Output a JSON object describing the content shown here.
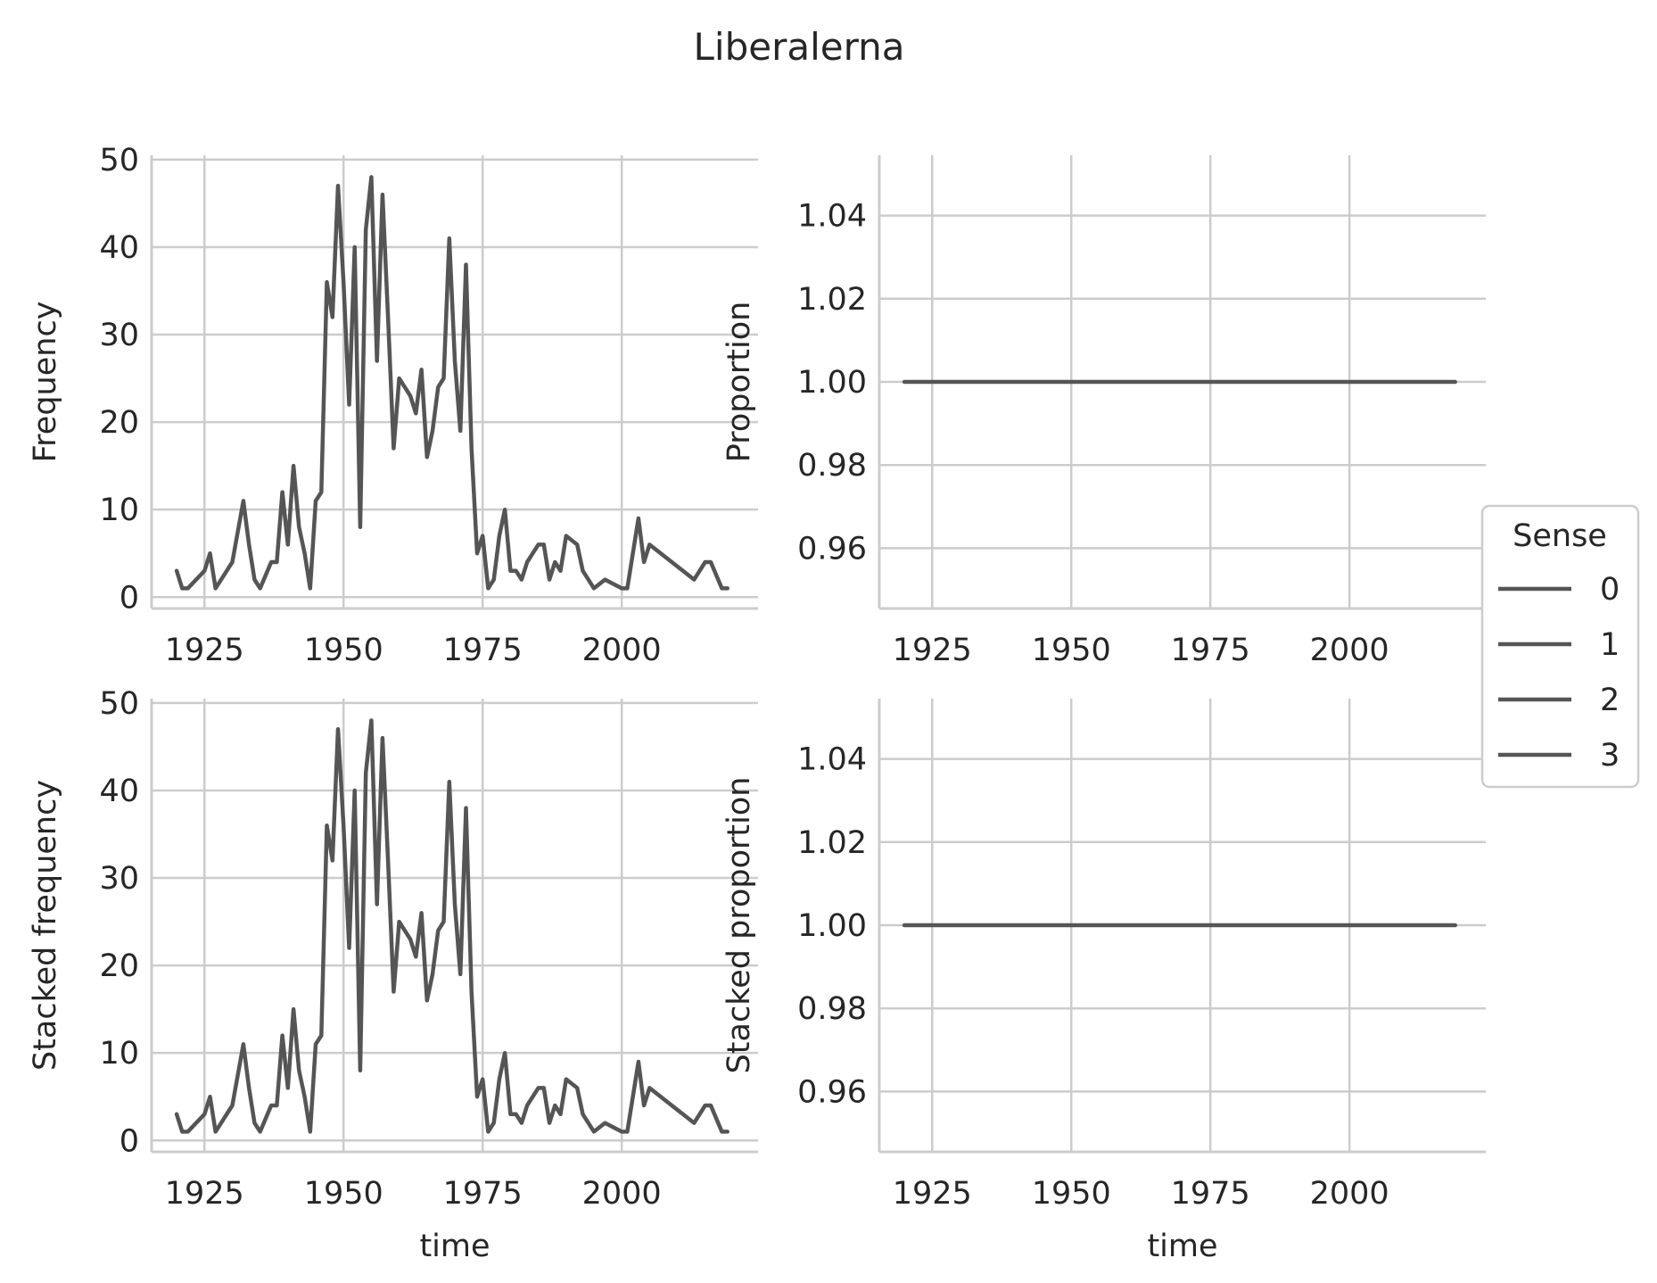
{
  "figure": {
    "title": "Liberalerna",
    "legend": {
      "title": "Sense",
      "entries": [
        "0",
        "1",
        "2",
        "3"
      ],
      "color": "#555555",
      "placement": "center-right outside"
    }
  },
  "chart_data": [
    {
      "id": "frequency",
      "type": "line",
      "xlabel": "",
      "ylabel": "Frequency",
      "xlim": [
        1915.5,
        2024.5
      ],
      "ylim": [
        -1.3,
        50.5
      ],
      "xticks": [
        1925,
        1950,
        1975,
        2000
      ],
      "xtick_labels": [
        "1925",
        "1950",
        "1975",
        "2000"
      ],
      "yticks": [
        0,
        10,
        20,
        30,
        40,
        50
      ],
      "ytick_labels": [
        "0",
        "10",
        "20",
        "30",
        "40",
        "50"
      ],
      "grid": true,
      "color": "#555555",
      "series": [
        {
          "x": [
            1920,
            1921,
            1922,
            1925,
            1926,
            1927,
            1930,
            1932,
            1933,
            1934,
            1935,
            1937,
            1938,
            1939,
            1940,
            1941,
            1942,
            1943,
            1944,
            1945,
            1946,
            1947,
            1948,
            1949,
            1950,
            1951,
            1952,
            1953,
            1954,
            1955,
            1956,
            1957,
            1958,
            1959,
            1960,
            1962,
            1963,
            1964,
            1965,
            1966,
            1967,
            1968,
            1969,
            1970,
            1971,
            1972,
            1973,
            1974,
            1975,
            1976,
            1977,
            1978,
            1979,
            1980,
            1981,
            1982,
            1983,
            1985,
            1986,
            1987,
            1988,
            1989,
            1990,
            1992,
            1993,
            1995,
            1997,
            2000,
            2001,
            2003,
            2004,
            2005,
            2013,
            2014,
            2015,
            2016,
            2018,
            2019
          ],
          "y": [
            3,
            1,
            1,
            3,
            5,
            1,
            4,
            11,
            6,
            2,
            1,
            4,
            4,
            12,
            6,
            15,
            8,
            5,
            1,
            11,
            12,
            36,
            32,
            47,
            36,
            22,
            40,
            8,
            42,
            48,
            27,
            46,
            32,
            17,
            25,
            23,
            21,
            26,
            16,
            19,
            24,
            25,
            41,
            27,
            19,
            38,
            17,
            5,
            7,
            1,
            2,
            7,
            10,
            3,
            3,
            2,
            4,
            6,
            6,
            2,
            4,
            3,
            7,
            6,
            3,
            1,
            2,
            1,
            1,
            9,
            4,
            6,
            2,
            3,
            4,
            4,
            1,
            1
          ]
        }
      ]
    },
    {
      "id": "proportion",
      "type": "line",
      "xlabel": "",
      "ylabel": "Proportion",
      "xlim": [
        1915.5,
        2024.5
      ],
      "ylim": [
        0.9455,
        1.0545
      ],
      "xticks": [
        1925,
        1950,
        1975,
        2000
      ],
      "xtick_labels": [
        "1925",
        "1950",
        "1975",
        "2000"
      ],
      "yticks": [
        0.96,
        0.98,
        1.0,
        1.02,
        1.04
      ],
      "ytick_labels": [
        "0.96",
        "0.98",
        "1.00",
        "1.02",
        "1.04"
      ],
      "grid": true,
      "color": "#555555",
      "series": [
        {
          "x": [
            1920,
            2019
          ],
          "y": [
            1.0,
            1.0
          ]
        }
      ]
    },
    {
      "id": "stacked-frequency",
      "type": "line",
      "xlabel": "time",
      "ylabel": "Stacked frequency",
      "xlim": [
        1915.5,
        2024.5
      ],
      "ylim": [
        -1.3,
        50.5
      ],
      "xticks": [
        1925,
        1950,
        1975,
        2000
      ],
      "xtick_labels": [
        "1925",
        "1950",
        "1975",
        "2000"
      ],
      "yticks": [
        0,
        10,
        20,
        30,
        40,
        50
      ],
      "ytick_labels": [
        "0",
        "10",
        "20",
        "30",
        "40",
        "50"
      ],
      "grid": true,
      "color": "#555555",
      "series": [
        {
          "x": [
            1920,
            1921,
            1922,
            1925,
            1926,
            1927,
            1930,
            1932,
            1933,
            1934,
            1935,
            1937,
            1938,
            1939,
            1940,
            1941,
            1942,
            1943,
            1944,
            1945,
            1946,
            1947,
            1948,
            1949,
            1950,
            1951,
            1952,
            1953,
            1954,
            1955,
            1956,
            1957,
            1958,
            1959,
            1960,
            1962,
            1963,
            1964,
            1965,
            1966,
            1967,
            1968,
            1969,
            1970,
            1971,
            1972,
            1973,
            1974,
            1975,
            1976,
            1977,
            1978,
            1979,
            1980,
            1981,
            1982,
            1983,
            1985,
            1986,
            1987,
            1988,
            1989,
            1990,
            1992,
            1993,
            1995,
            1997,
            2000,
            2001,
            2003,
            2004,
            2005,
            2013,
            2014,
            2015,
            2016,
            2018,
            2019
          ],
          "y": [
            3,
            1,
            1,
            3,
            5,
            1,
            4,
            11,
            6,
            2,
            1,
            4,
            4,
            12,
            6,
            15,
            8,
            5,
            1,
            11,
            12,
            36,
            32,
            47,
            36,
            22,
            40,
            8,
            42,
            48,
            27,
            46,
            32,
            17,
            25,
            23,
            21,
            26,
            16,
            19,
            24,
            25,
            41,
            27,
            19,
            38,
            17,
            5,
            7,
            1,
            2,
            7,
            10,
            3,
            3,
            2,
            4,
            6,
            6,
            2,
            4,
            3,
            7,
            6,
            3,
            1,
            2,
            1,
            1,
            9,
            4,
            6,
            2,
            3,
            4,
            4,
            1,
            1
          ]
        }
      ]
    },
    {
      "id": "stacked-proportion",
      "type": "line",
      "xlabel": "time",
      "ylabel": "Stacked proportion",
      "xlim": [
        1915.5,
        2024.5
      ],
      "ylim": [
        0.9455,
        1.0545
      ],
      "xticks": [
        1925,
        1950,
        1975,
        2000
      ],
      "xtick_labels": [
        "1925",
        "1950",
        "1975",
        "2000"
      ],
      "yticks": [
        0.96,
        0.98,
        1.0,
        1.02,
        1.04
      ],
      "ytick_labels": [
        "0.96",
        "0.98",
        "1.00",
        "1.02",
        "1.04"
      ],
      "grid": true,
      "color": "#555555",
      "series": [
        {
          "x": [
            1920,
            2019
          ],
          "y": [
            1.0,
            1.0
          ]
        }
      ]
    }
  ]
}
